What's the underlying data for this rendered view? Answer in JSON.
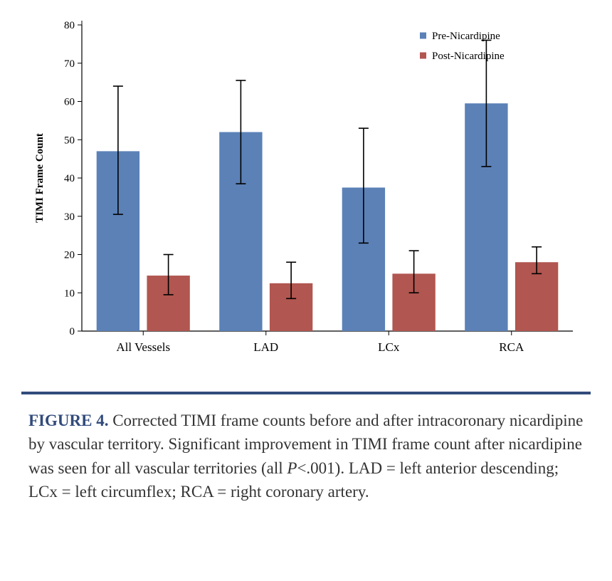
{
  "chart": {
    "type": "bar_with_error",
    "background_color": "#ffffff",
    "plot_background": "#ffffff",
    "ylabel": "TIMI Frame Count",
    "ylabel_fontsize": 15,
    "ylabel_fontweight": "bold",
    "ylim": [
      0,
      80
    ],
    "ytick_step": 10,
    "yticks": [
      0,
      10,
      20,
      30,
      40,
      50,
      60,
      70,
      80
    ],
    "axis_color": "#000000",
    "tick_fontsize": 15,
    "categories": [
      "All Vessels",
      "LAD",
      "LCx",
      "RCA"
    ],
    "category_fontsize": 17,
    "series": [
      {
        "name": "Pre-Nicardipine",
        "color": "#5b81b7",
        "marker": "square",
        "values": [
          47,
          52,
          37.5,
          59.5
        ],
        "err_low": [
          30.5,
          38.5,
          23,
          43
        ],
        "err_high": [
          64,
          65.5,
          53,
          76
        ]
      },
      {
        "name": "Post-Nicardipine",
        "color": "#b15650",
        "marker": "square",
        "values": [
          14.5,
          12.5,
          15,
          18
        ],
        "err_low": [
          9.5,
          8.5,
          10,
          15
        ],
        "err_high": [
          20,
          18,
          21,
          22
        ]
      }
    ],
    "bar_width_ratio": 0.35,
    "bar_gap_ratio": 0.06,
    "error_bar_color": "#000000",
    "error_bar_linewidth": 1.6,
    "error_cap_width": 14,
    "legend": {
      "position": "top-right",
      "fontsize": 15,
      "marker_size": 9
    }
  },
  "divider_color": "#324b7b",
  "caption": {
    "label": "FIGURE 4.",
    "label_color": "#324b7b",
    "text_parts": [
      " Corrected TIMI frame counts before and after intracoronary nicardipine by vascular territory. Significant improvement in TIMI frame count after nicardipine was seen for all vascular territories (all ",
      "P",
      "<.001). LAD = left anterior descending; LCx = left circumflex; RCA = right coronary artery."
    ],
    "text_color": "#333333",
    "fontsize": 23
  }
}
